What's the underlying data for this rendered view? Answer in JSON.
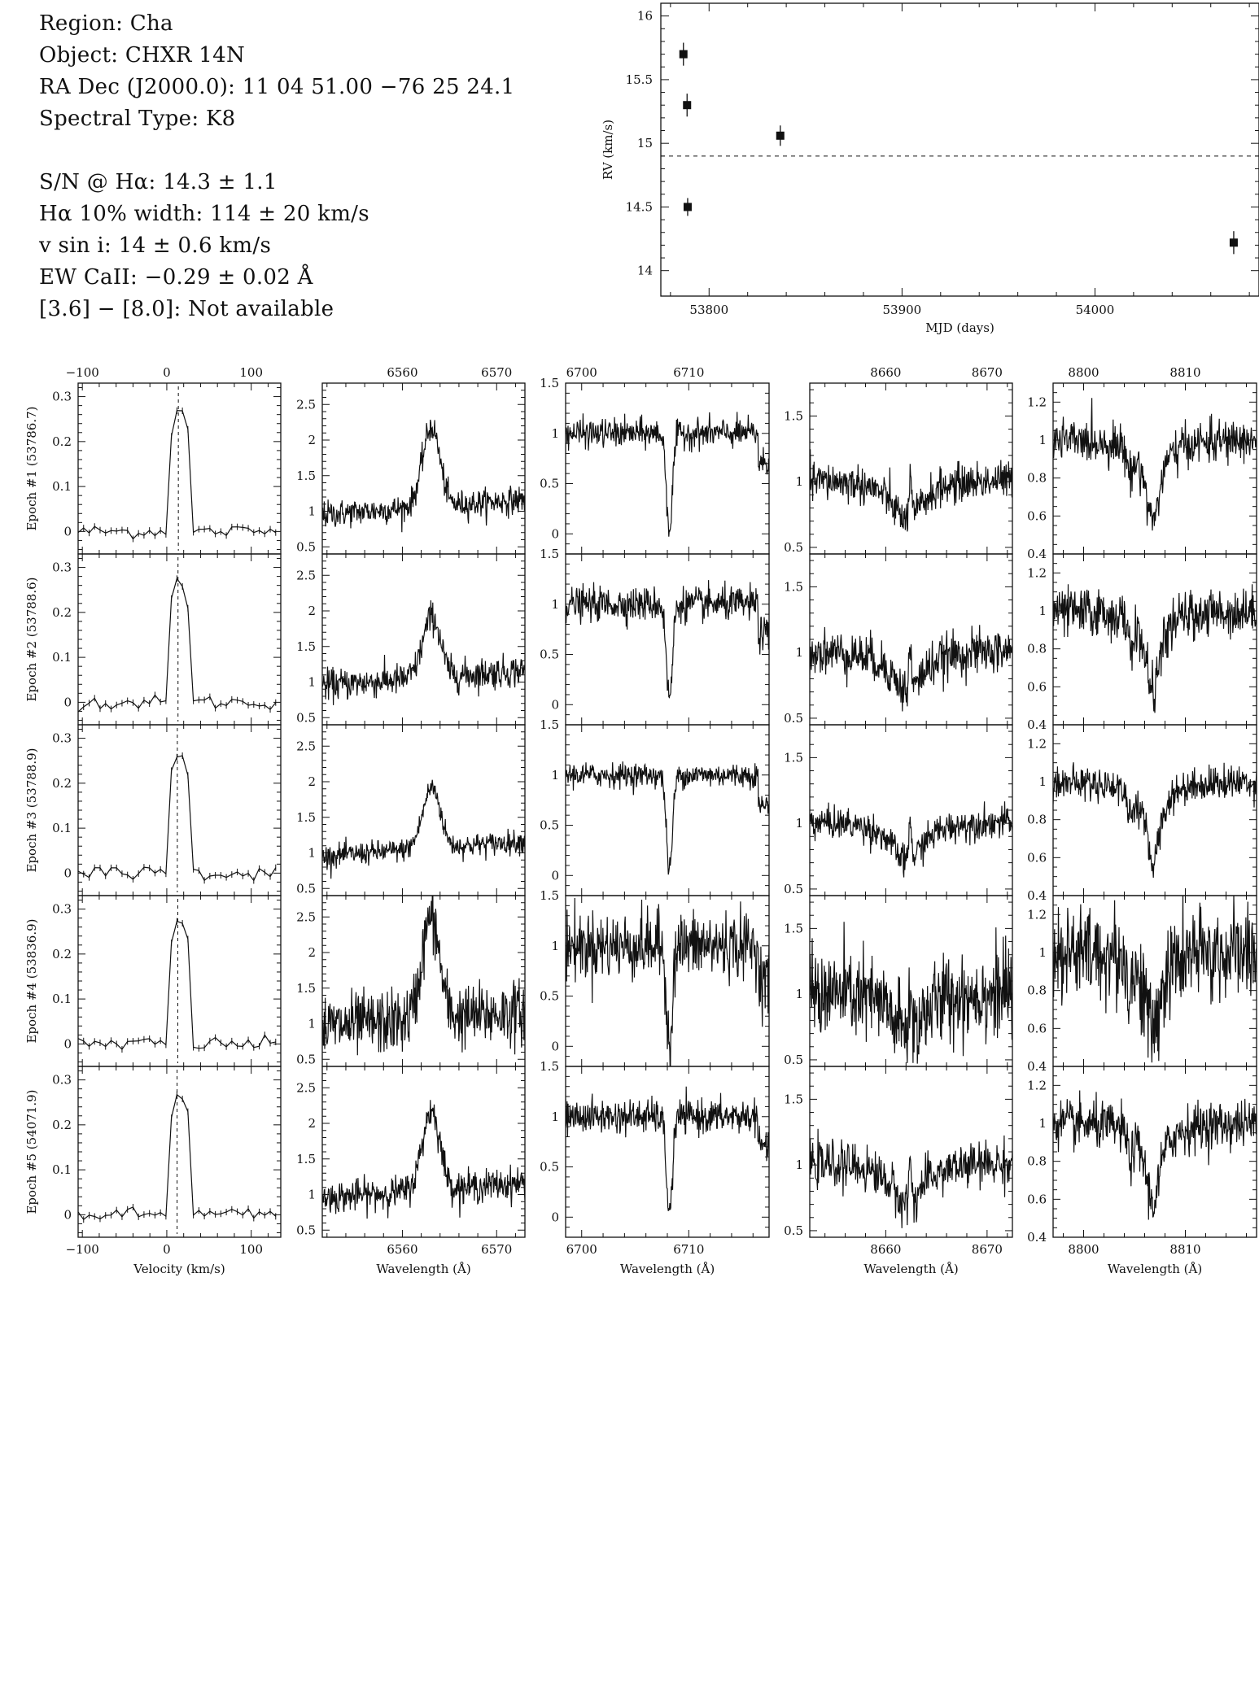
{
  "info": {
    "region": "Region: Cha",
    "object": "Object: CHXR 14N",
    "radec": "RA Dec (J2000.0): 11 04 51.00 −76 25 24.1",
    "sptype": "Spectral Type: K8",
    "sn": "S/N @ Hα: 14.3 ± 1.1",
    "ha_width": "Hα 10% width: 114 ± 20 km/s",
    "vsini": "v sin i: 14 ± 0.6 km/s",
    "ew_ca": "EW CaII: −0.29 ± 0.02 Å",
    "irac": "[3.6] − [8.0]: Not available"
  },
  "chart_data": [
    {
      "type": "scatter",
      "id": "rv",
      "xlabel": "MJD (days)",
      "ylabel": "RV (km/s)",
      "xlim": [
        53775,
        54085
      ],
      "ylim": [
        13.8,
        16.1
      ],
      "xticks": [
        "53800",
        "53900",
        "54000"
      ],
      "yticks": [
        "14",
        "14.5",
        "15",
        "15.5",
        "16"
      ],
      "mean_rv": 14.9,
      "points": [
        {
          "x": 53786.7,
          "y": 15.7,
          "err": 0.09
        },
        {
          "x": 53788.6,
          "y": 15.3,
          "err": 0.09
        },
        {
          "x": 53788.9,
          "y": 14.5,
          "err": 0.07
        },
        {
          "x": 53836.9,
          "y": 15.06,
          "err": 0.08
        },
        {
          "x": 54071.9,
          "y": 14.22,
          "err": 0.09
        }
      ]
    },
    {
      "type": "line",
      "id": "spectra_grid",
      "epoch_labels": [
        "Epoch #1 (53786.7)",
        "Epoch #2 (53788.6)",
        "Epoch #3 (53788.9)",
        "Epoch #4 (53836.9)",
        "Epoch #5 (54071.9)"
      ],
      "epoch_rv": [
        15.7,
        15.3,
        14.5,
        15.06,
        14.22
      ],
      "epoch_noise": [
        0.06,
        0.07,
        0.05,
        0.14,
        0.07
      ],
      "columns": [
        {
          "name": "velocity",
          "xlabel": "Velocity (km/s)",
          "xlim": [
            -105,
            135
          ],
          "ylim": [
            -0.05,
            0.33
          ],
          "xticks": [
            "−100",
            "0",
            "100"
          ],
          "yticks": [
            "0",
            "0.1",
            "0.2",
            "0.3"
          ]
        },
        {
          "name": "halpha",
          "xlabel": "Wavelength (Å)",
          "xlim": [
            6551.5,
            6573
          ],
          "ylim": [
            0.4,
            2.8
          ],
          "xticks": [
            "6560",
            "6570"
          ],
          "yticks": [
            "0.5",
            "1",
            "1.5",
            "2",
            "2.5"
          ]
        },
        {
          "name": "lithium",
          "xlabel": "Wavelength (Å)",
          "xlim": [
            6698.5,
            6717.5
          ],
          "ylim": [
            -0.2,
            1.5
          ],
          "xticks": [
            "6700",
            "6710"
          ],
          "yticks": [
            "0",
            "0.5",
            "1",
            "1.5"
          ]
        },
        {
          "name": "ca8662",
          "xlabel": "Wavelength (Å)",
          "xlim": [
            8652.5,
            8672.5
          ],
          "ylim": [
            0.45,
            1.75
          ],
          "xticks": [
            "8660",
            "8670"
          ],
          "yticks": [
            "0.5",
            "1",
            "1.5"
          ]
        },
        {
          "name": "ca8806",
          "xlabel": "Wavelength (Å)",
          "xlim": [
            8797,
            8817
          ],
          "ylim": [
            0.4,
            1.3
          ],
          "xticks": [
            "8800",
            "8810"
          ],
          "yticks": [
            "0.4",
            "0.6",
            "0.8",
            "1",
            "1.2"
          ]
        }
      ]
    }
  ]
}
